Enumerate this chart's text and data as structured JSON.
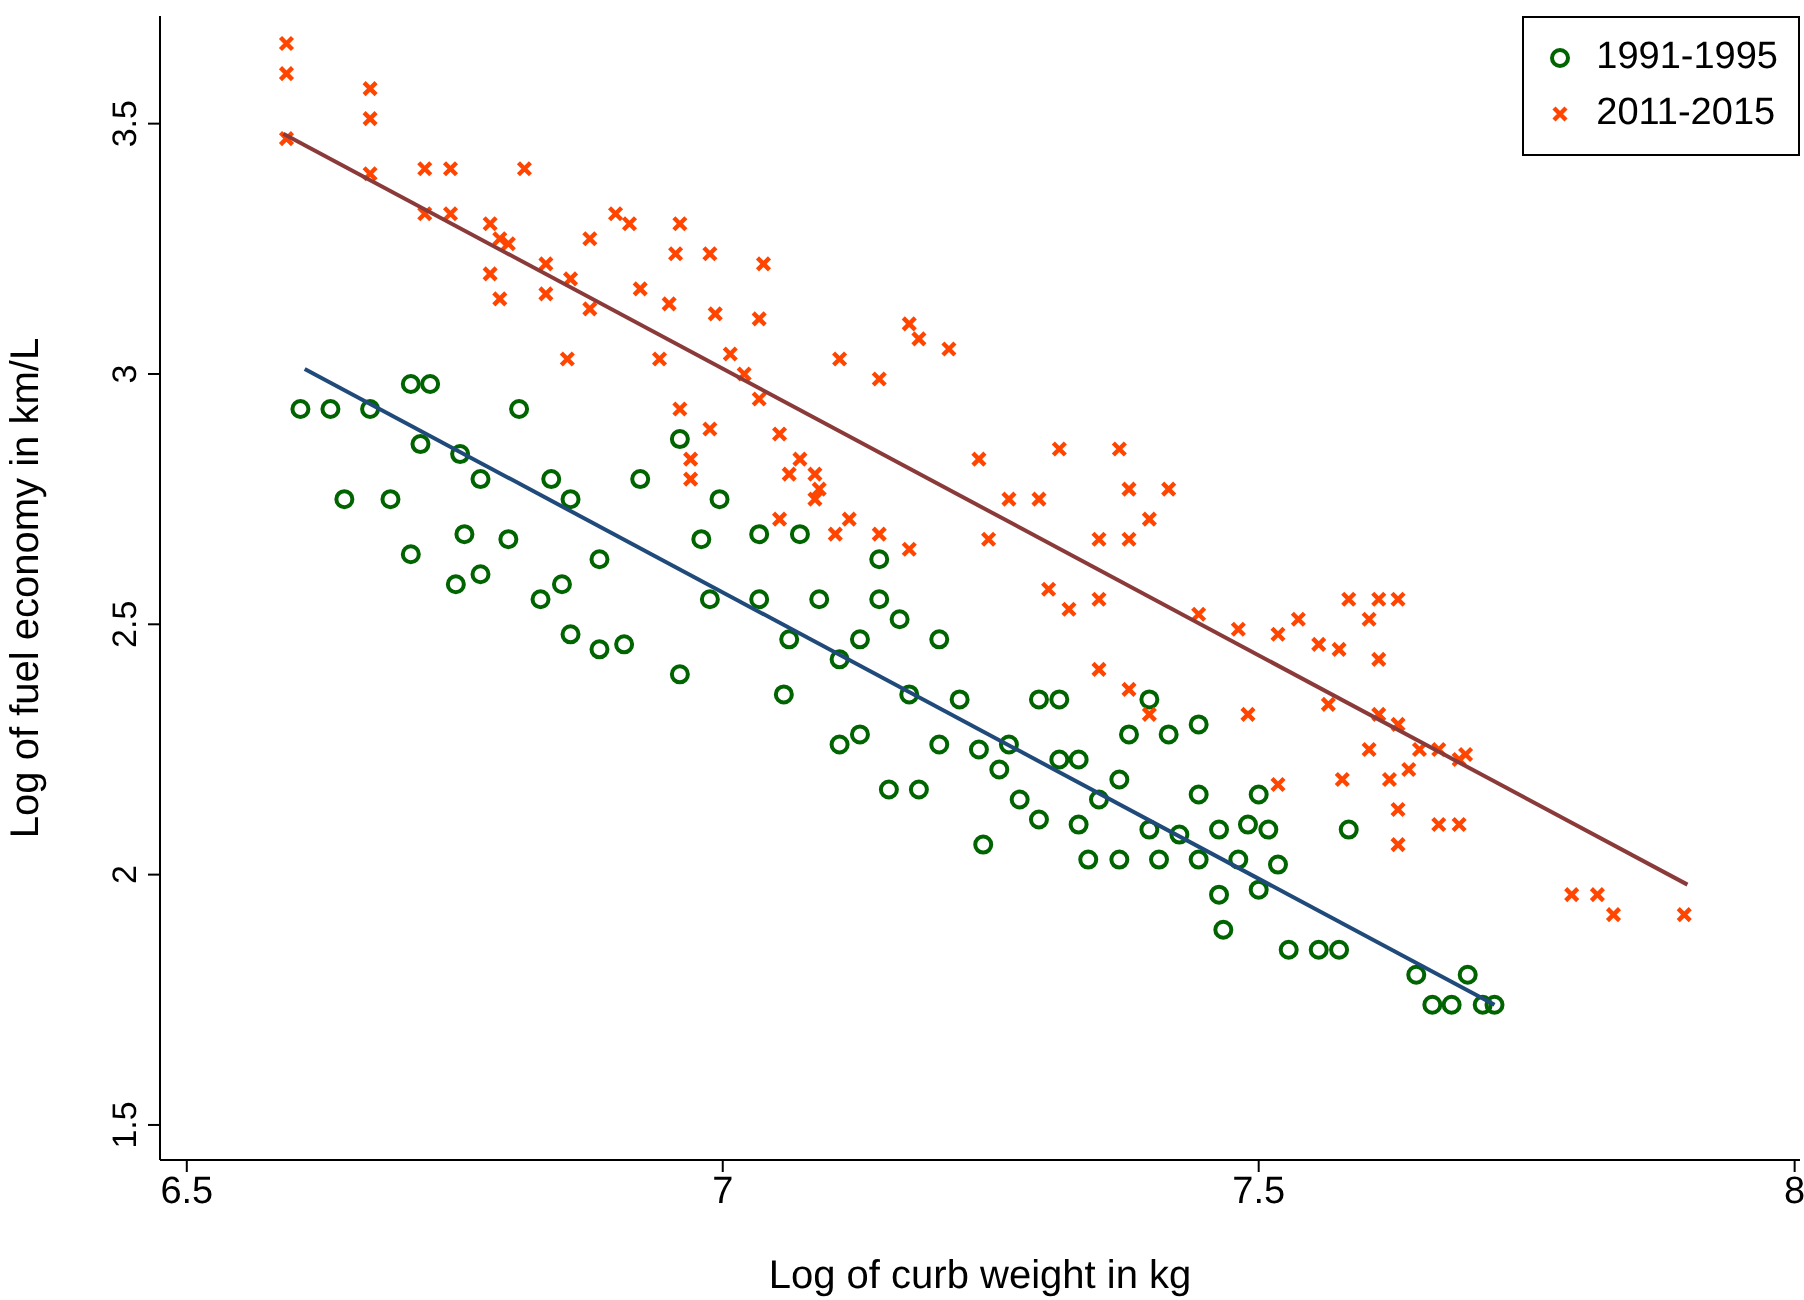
{
  "chart_data": {
    "type": "scatter",
    "xlabel": "Log of curb weight in kg",
    "ylabel": "Log of fuel economy in km/L",
    "xlim": [
      6.475,
      8.005
    ],
    "ylim": [
      1.43,
      3.715
    ],
    "xticks": [
      {
        "value": 6.5,
        "label": "6.5"
      },
      7,
      {
        "value": 7.5,
        "label": "7.5"
      },
      8
    ],
    "yticks": [
      {
        "value": 1.5,
        "label": "1.5"
      },
      2,
      {
        "value": 2.5,
        "label": "2.5"
      },
      3,
      {
        "value": 3.5,
        "label": "3.5"
      }
    ],
    "legend": "top right",
    "series": [
      {
        "name": "1991-1995",
        "marker": "circle",
        "color": "#006400",
        "x": [
          6.606,
          6.634,
          6.671,
          6.647,
          6.69,
          6.709,
          6.709,
          6.727,
          6.718,
          6.755,
          6.774,
          6.759,
          6.774,
          6.751,
          6.8,
          6.81,
          6.84,
          6.858,
          6.83,
          6.85,
          6.885,
          6.908,
          6.885,
          6.858,
          6.923,
          6.96,
          6.96,
          6.98,
          6.988,
          6.997,
          7.034,
          7.034,
          7.062,
          7.057,
          7.072,
          7.09,
          7.109,
          7.128,
          7.146,
          7.165,
          7.174,
          7.109,
          7.128,
          7.155,
          7.183,
          7.202,
          7.221,
          7.239,
          7.258,
          7.295,
          7.314,
          7.243,
          7.277,
          7.295,
          7.314,
          7.332,
          7.332,
          7.341,
          7.37,
          7.379,
          7.398,
          7.416,
          7.444,
          7.444,
          7.398,
          7.426,
          7.463,
          7.49,
          7.5,
          7.481,
          7.463,
          7.467,
          7.5,
          7.509,
          7.518,
          7.528,
          7.556,
          7.575,
          7.584,
          7.647,
          7.662,
          7.68,
          7.695,
          7.709,
          7.72,
          7.146,
          7.202,
          7.37,
          7.407,
          7.444,
          7.351,
          7.267
        ],
        "values": [
          2.93,
          2.93,
          2.93,
          2.75,
          2.75,
          2.64,
          2.98,
          2.98,
          2.86,
          2.84,
          2.79,
          2.68,
          2.6,
          2.58,
          2.67,
          2.93,
          2.79,
          2.75,
          2.55,
          2.58,
          2.63,
          2.46,
          2.45,
          2.48,
          2.79,
          2.87,
          2.4,
          2.67,
          2.55,
          2.75,
          2.68,
          2.55,
          2.47,
          2.36,
          2.68,
          2.55,
          2.43,
          2.47,
          2.55,
          2.51,
          2.36,
          2.26,
          2.28,
          2.17,
          2.17,
          2.26,
          2.35,
          2.25,
          2.21,
          2.35,
          2.35,
          2.06,
          2.15,
          2.11,
          2.23,
          2.23,
          2.1,
          2.03,
          2.19,
          2.28,
          2.35,
          2.28,
          2.3,
          2.16,
          2.09,
          2.08,
          2.09,
          2.1,
          2.16,
          2.03,
          1.96,
          1.89,
          1.97,
          2.09,
          2.02,
          1.85,
          1.85,
          1.85,
          2.09,
          1.8,
          1.74,
          1.74,
          1.8,
          1.74,
          1.74,
          2.63,
          2.47,
          2.03,
          2.03,
          2.03,
          2.15,
          2.26
        ]
      },
      {
        "name": "2011-2015",
        "marker": "cross",
        "color": "#ff4500",
        "x": [
          6.593,
          6.593,
          6.593,
          6.671,
          6.671,
          6.671,
          6.722,
          6.746,
          6.722,
          6.746,
          6.815,
          6.783,
          6.792,
          6.783,
          6.792,
          6.8,
          6.835,
          6.835,
          6.858,
          6.855,
          6.876,
          6.9,
          6.913,
          6.923,
          6.876,
          6.96,
          6.95,
          6.956,
          6.988,
          6.993,
          7.038,
          7.034,
          6.941,
          6.96,
          6.988,
          6.97,
          6.97,
          7.007,
          7.02,
          7.034,
          7.053,
          7.072,
          7.086,
          7.086,
          7.062,
          7.053,
          7.09,
          7.105,
          7.118,
          7.146,
          7.174,
          7.109,
          7.146,
          7.174,
          7.183,
          7.211,
          7.239,
          7.267,
          7.248,
          7.314,
          7.37,
          7.379,
          7.416,
          7.398,
          7.351,
          7.379,
          7.304,
          7.323,
          7.351,
          7.295,
          7.351,
          7.379,
          7.398,
          7.444,
          7.481,
          7.518,
          7.556,
          7.537,
          7.584,
          7.612,
          7.63,
          7.603,
          7.575,
          7.612,
          7.49,
          7.565,
          7.612,
          7.63,
          7.603,
          7.622,
          7.64,
          7.65,
          7.668,
          7.687,
          7.578,
          7.63,
          7.668,
          7.687,
          7.63,
          7.693,
          7.792,
          7.816,
          7.831,
          7.897,
          7.518
        ],
        "values": [
          3.66,
          3.6,
          3.47,
          3.57,
          3.51,
          3.4,
          3.41,
          3.41,
          3.32,
          3.32,
          3.41,
          3.3,
          3.27,
          3.2,
          3.15,
          3.26,
          3.22,
          3.16,
          3.19,
          3.03,
          3.27,
          3.32,
          3.3,
          3.17,
          3.13,
          3.3,
          3.14,
          3.24,
          3.24,
          3.12,
          3.22,
          3.11,
          3.03,
          2.93,
          2.89,
          2.83,
          2.79,
          3.04,
          3.0,
          2.95,
          2.88,
          2.83,
          2.8,
          2.75,
          2.8,
          2.71,
          2.77,
          2.68,
          2.71,
          2.68,
          2.65,
          3.03,
          2.99,
          3.1,
          3.07,
          3.05,
          2.83,
          2.75,
          2.67,
          2.85,
          2.85,
          2.77,
          2.77,
          2.71,
          2.67,
          2.67,
          2.57,
          2.53,
          2.55,
          2.75,
          2.41,
          2.37,
          2.32,
          2.52,
          2.49,
          2.48,
          2.46,
          2.51,
          2.55,
          2.55,
          2.55,
          2.51,
          2.45,
          2.43,
          2.32,
          2.34,
          2.32,
          2.3,
          2.25,
          2.19,
          2.21,
          2.25,
          2.25,
          2.23,
          2.19,
          2.13,
          2.1,
          2.1,
          2.06,
          2.24,
          1.96,
          1.96,
          1.92,
          1.92,
          2.18
        ]
      },
      {
        "type": "line",
        "color": "#1f4a7a",
        "x": [
          6.61,
          7.72
        ],
        "values": [
          3.01,
          1.74
        ]
      },
      {
        "type": "line",
        "color": "#8b3a3a",
        "x": [
          6.59,
          7.9
        ],
        "values": [
          3.48,
          1.98
        ]
      }
    ]
  }
}
